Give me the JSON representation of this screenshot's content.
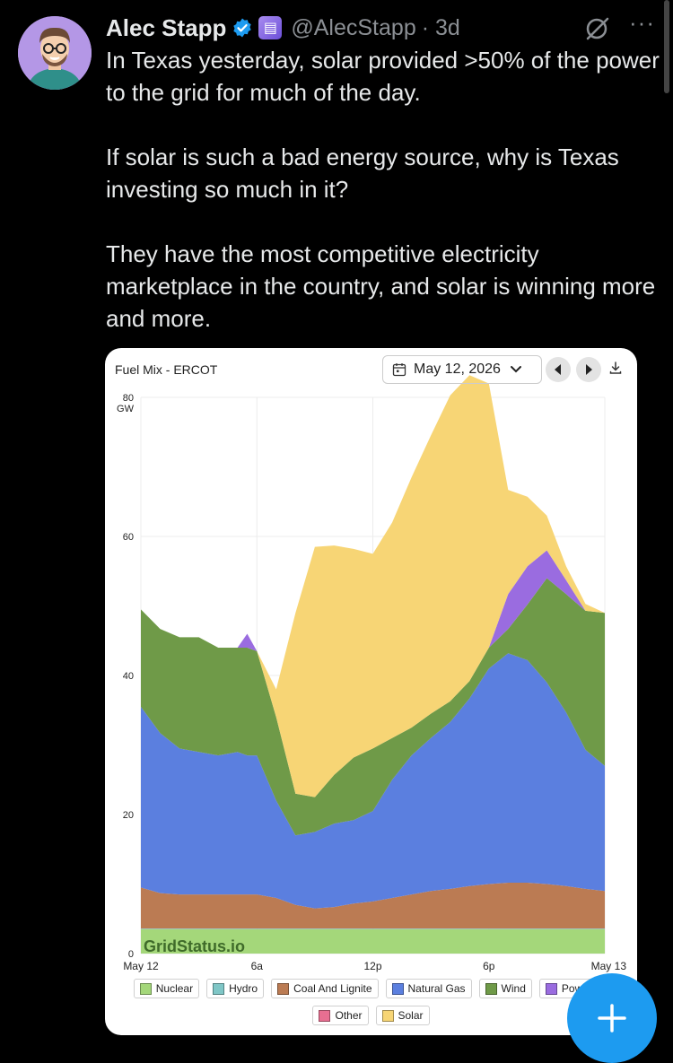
{
  "tweet": {
    "author_name": "Alec Stapp",
    "handle": "@AlecStapp",
    "time": "· 3d",
    "text": "In Texas yesterday, solar provided >50% of the power to the grid for much of the day.\n\nIf solar is such a bad energy source, why is Texas investing so much in it?\n\nThey have the most competitive electricity marketplace in the country, and solar is winning more and more.",
    "more_label": "···"
  },
  "card": {
    "title": "Fuel Mix - ERCOT",
    "date": "May 12, 2026",
    "watermark": "GridStatus.io"
  },
  "chart_data": {
    "type": "area",
    "stacked": true,
    "unit": "GW",
    "ylim": [
      0,
      80
    ],
    "yticks": [
      "0",
      "20",
      "40",
      "60",
      "80"
    ],
    "xticks": [
      "May 12",
      "6a",
      "12p",
      "6p",
      "May 13"
    ],
    "x_hours": [
      0,
      1,
      2,
      3,
      4,
      5,
      5.5,
      6,
      7,
      8,
      9,
      10,
      11,
      12,
      13,
      14,
      15,
      16,
      17,
      18,
      19,
      20,
      21,
      22,
      23,
      24
    ],
    "series": [
      {
        "name": "Nuclear",
        "color": "#a4d77a",
        "values": [
          3.5,
          3.5,
          3.5,
          3.5,
          3.5,
          3.5,
          3.5,
          3.5,
          3.5,
          3.5,
          3.5,
          3.5,
          3.5,
          3.5,
          3.5,
          3.5,
          3.5,
          3.5,
          3.5,
          3.5,
          3.5,
          3.5,
          3.5,
          3.5,
          3.5,
          3.5
        ]
      },
      {
        "name": "Hydro",
        "color": "#7fc6c6",
        "values": [
          0.1,
          0.1,
          0.1,
          0.1,
          0.1,
          0.1,
          0.1,
          0.1,
          0.1,
          0.1,
          0.1,
          0.1,
          0.1,
          0.1,
          0.1,
          0.1,
          0.1,
          0.1,
          0.1,
          0.1,
          0.1,
          0.1,
          0.1,
          0.1,
          0.1,
          0.1
        ]
      },
      {
        "name": "Coal And Lignite",
        "color": "#bb7b53",
        "values": [
          5.9,
          5.1,
          4.9,
          4.9,
          4.9,
          4.9,
          4.9,
          4.9,
          4.4,
          3.4,
          2.9,
          3.1,
          3.6,
          3.9,
          4.4,
          4.9,
          5.4,
          5.7,
          6.1,
          6.4,
          6.6,
          6.6,
          6.4,
          6.1,
          5.7,
          5.4
        ]
      },
      {
        "name": "Natural Gas",
        "color": "#5b7fdf",
        "values": [
          26,
          23,
          21,
          20.5,
          20,
          20.5,
          20,
          20,
          14,
          10,
          11,
          12,
          12,
          13,
          17,
          20,
          22,
          24,
          27,
          31,
          33,
          32,
          29,
          25,
          20,
          18
        ]
      },
      {
        "name": "Wind",
        "color": "#6f9a48",
        "values": [
          14,
          15,
          16,
          16.5,
          15.5,
          15,
          15.5,
          15,
          12,
          6,
          5,
          7,
          9,
          9,
          6,
          4,
          3.5,
          3,
          2.5,
          3,
          3.5,
          8,
          15,
          17,
          20,
          22
        ]
      },
      {
        "name": "Power Storage",
        "color": "#9a6ce0",
        "values": [
          0,
          0,
          0,
          0,
          0,
          0,
          2,
          0,
          0,
          0,
          0,
          0,
          0,
          0,
          0,
          0,
          0,
          0,
          0,
          0,
          5,
          5.5,
          4,
          2,
          0,
          0
        ]
      },
      {
        "name": "Other",
        "color": "#e86f91",
        "values": [
          0,
          0,
          0,
          0,
          0,
          0,
          0,
          0,
          0,
          0,
          0,
          0,
          0,
          0,
          0,
          0,
          0,
          0,
          0,
          0,
          0,
          0,
          0,
          0,
          0,
          0
        ]
      },
      {
        "name": "Solar",
        "color": "#f7d575",
        "values": [
          0,
          0,
          0,
          0,
          0,
          0,
          0,
          0,
          4,
          26,
          36,
          33,
          30,
          28,
          31,
          36,
          40,
          44,
          44,
          38,
          15,
          10,
          5,
          2,
          1,
          0
        ]
      }
    ],
    "legend_visible": [
      "Nuclear",
      "Hydro",
      "Coal And Lignite",
      "Natural Gas",
      "Wind",
      "Power S",
      "Other",
      "Solar"
    ]
  },
  "colors": {
    "background": "#000000",
    "text": "#e7e9ea",
    "muted": "#8b8f94",
    "accent": "#1d9bf0",
    "avatar_bg": "#b497e6"
  },
  "icons": {
    "verified": "verified-badge-icon",
    "subscription": "subscription-badge-icon",
    "grok": "grok-icon",
    "more": "more-dots-icon",
    "calendar": "calendar-icon",
    "chevron": "chevron-down-icon",
    "prev": "prev-day-icon",
    "next": "next-day-icon",
    "download": "download-icon",
    "compose": "plus-icon"
  }
}
